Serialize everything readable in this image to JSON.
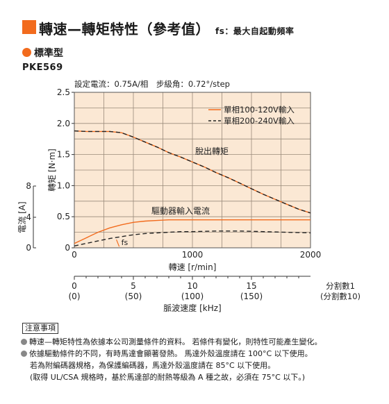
{
  "header": {
    "title": "轉速—轉矩特性（參考值）",
    "title_suffix": "fs：最大自起動頻率",
    "subtitle": "標準型",
    "model": "PKE569",
    "accent_color": "#f26b1d"
  },
  "chart_data": {
    "type": "line",
    "info": "設定電流：0.75A/相　步級角：0.72°/step",
    "xlabel": "轉速 [r/min]",
    "x2label": "脈波速度 [kHz]",
    "ylabel_torque": "轉矩 [N·m]",
    "ylabel_current": "電流 [A]",
    "xlim": [
      0,
      2000
    ],
    "ylim": [
      0,
      2.5
    ],
    "x_ticks": [
      "0",
      "1000",
      "2000"
    ],
    "y_ticks": [
      "0",
      "0.5",
      "1.0",
      "1.5",
      "2.0",
      "2.5"
    ],
    "current_ticks": [
      "0",
      "4",
      "8"
    ],
    "khz_ticks": [
      "0",
      "5",
      "10",
      "15"
    ],
    "khz_ticks_paren": [
      "(0)",
      "(50)",
      "(100)",
      "(150)"
    ],
    "khz_values": [
      0,
      5,
      10,
      15
    ],
    "division_label": "分割數1",
    "division_label_paren": "(分割數10)",
    "grid": true,
    "plot_bg": "#fbe8d4",
    "series": [
      {
        "name": "單相100-120V輸入",
        "style": "solid",
        "color": "#f26b1d",
        "x": [
          0,
          100,
          200,
          300,
          400,
          500,
          600,
          700,
          800,
          900,
          1000,
          1100,
          1200,
          1300,
          1400,
          1500,
          1600,
          1700,
          1800,
          1900,
          2000
        ],
        "values": [
          1.88,
          1.87,
          1.87,
          1.87,
          1.85,
          1.78,
          1.7,
          1.62,
          1.53,
          1.46,
          1.38,
          1.3,
          1.21,
          1.13,
          1.04,
          0.95,
          0.86,
          0.78,
          0.7,
          0.62,
          0.56
        ]
      },
      {
        "name": "單相200-240V輸入",
        "style": "dashed",
        "color": "#222222",
        "x": [
          0,
          100,
          200,
          300,
          400,
          500,
          600,
          700,
          800,
          900,
          1000,
          1100,
          1200,
          1300,
          1400,
          1500,
          1600,
          1700,
          1800,
          1900,
          2000
        ],
        "values": [
          1.88,
          1.87,
          1.87,
          1.87,
          1.85,
          1.78,
          1.7,
          1.62,
          1.53,
          1.46,
          1.38,
          1.3,
          1.21,
          1.13,
          1.04,
          0.95,
          0.86,
          0.78,
          0.7,
          0.62,
          0.56
        ]
      },
      {
        "name": "驅動器輸入電流 單相100-120V",
        "style": "solid",
        "color": "#f26b1d",
        "x": [
          0,
          100,
          200,
          300,
          400,
          500,
          600,
          700,
          800,
          900,
          1000,
          1200,
          1400,
          1600,
          1800,
          2000
        ],
        "values": [
          0.07,
          0.16,
          0.25,
          0.32,
          0.37,
          0.41,
          0.43,
          0.44,
          0.45,
          0.45,
          0.45,
          0.45,
          0.45,
          0.45,
          0.45,
          0.45
        ]
      },
      {
        "name": "驅動器輸入電流 單相200-240V",
        "style": "dashed",
        "color": "#222222",
        "x": [
          0,
          100,
          200,
          300,
          400,
          500,
          600,
          700,
          800,
          900,
          1000,
          1200,
          1400,
          1600,
          1800,
          2000
        ],
        "values": [
          0.03,
          0.07,
          0.11,
          0.15,
          0.18,
          0.21,
          0.23,
          0.24,
          0.25,
          0.26,
          0.26,
          0.27,
          0.27,
          0.26,
          0.25,
          0.24
        ]
      }
    ],
    "annotations": {
      "pullout": "脫出轉矩",
      "current": "驅動器輸入電流",
      "fs": "fs"
    },
    "fs_point": {
      "x": 380,
      "y": 0.02
    }
  },
  "notes": {
    "title": "注意事項",
    "lines": [
      "轉速—轉矩特性為依據本公司測量條件的資料。 若條件有變化，則特性可能產生變化。",
      "依據驅動條件的不同，有時馬達會顯著發熱。 馬達外殼溫度請在 100°C 以下使用。",
      "若為附編碼器規格，為保護編碼器，馬達外殼溫度請在 85°C 以下使用。",
      "(取得 UL/CSA 規格時，基於馬達部的耐熱等級為 A 種之故，必須在 75°C 以下。)"
    ]
  }
}
